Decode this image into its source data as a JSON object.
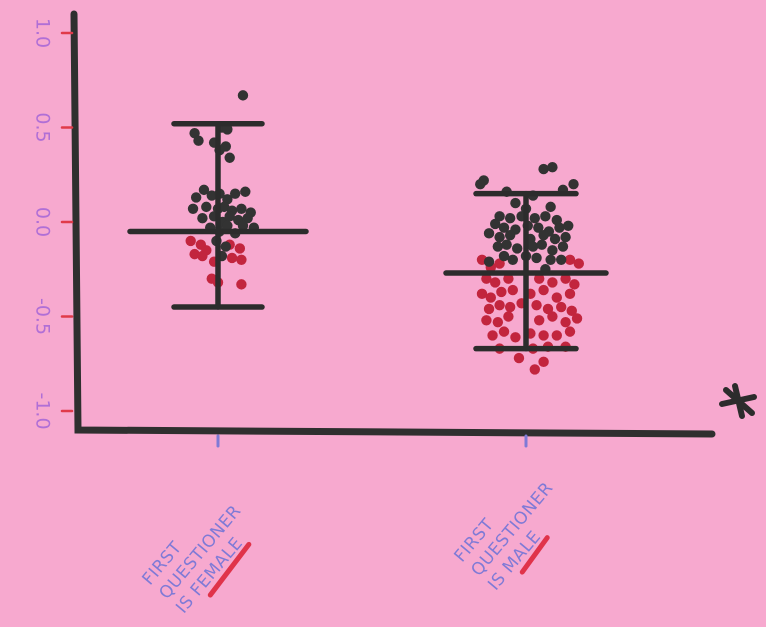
{
  "chart_data": {
    "type": "scatter",
    "ylim": [
      -1.0,
      1.0
    ],
    "yticks": [
      "1.0",
      "0.5",
      "0.0",
      "-0.5",
      "-1.0"
    ],
    "yticks_values": [
      1.0,
      0.5,
      0.0,
      -0.5,
      -1.0
    ],
    "categories": [
      {
        "lines": [
          "FIRST",
          "QUESTIONER",
          "IS FEMALE"
        ],
        "underlined_word": "FEMALE"
      },
      {
        "lines": [
          "FIRST",
          "QUESTIONER",
          "IS MALE"
        ],
        "underlined_word": "MALE"
      }
    ],
    "groups": [
      {
        "mean": -0.05,
        "upper": 0.52,
        "lower": -0.45,
        "points_black": [
          [
            0.32,
            0.67
          ],
          [
            -0.3,
            0.47
          ],
          [
            -0.25,
            0.43
          ],
          [
            0.05,
            0.5
          ],
          [
            0.12,
            0.49
          ],
          [
            -0.05,
            0.42
          ],
          [
            0.1,
            0.4
          ],
          [
            0.02,
            0.38
          ],
          [
            0.15,
            0.34
          ],
          [
            -0.28,
            0.13
          ],
          [
            -0.18,
            0.17
          ],
          [
            -0.08,
            0.14
          ],
          [
            0.02,
            0.15
          ],
          [
            0.12,
            0.12
          ],
          [
            0.22,
            0.15
          ],
          [
            0.35,
            0.16
          ],
          [
            -0.32,
            0.07
          ],
          [
            -0.15,
            0.08
          ],
          [
            0.0,
            0.07
          ],
          [
            0.08,
            0.08
          ],
          [
            0.18,
            0.06
          ],
          [
            0.3,
            0.07
          ],
          [
            0.42,
            0.05
          ],
          [
            -0.2,
            0.02
          ],
          [
            -0.05,
            0.03
          ],
          [
            0.06,
            0.0
          ],
          [
            0.15,
            0.03
          ],
          [
            0.26,
            0.01
          ],
          [
            0.38,
            0.02
          ],
          [
            -0.1,
            -0.03
          ],
          [
            0.02,
            -0.05
          ],
          [
            0.12,
            -0.02
          ],
          [
            0.22,
            -0.06
          ],
          [
            0.32,
            -0.02
          ],
          [
            0.46,
            -0.03
          ],
          [
            -0.02,
            -0.1
          ],
          [
            0.1,
            -0.13
          ],
          [
            0.05,
            -0.18
          ]
        ],
        "points_red": [
          [
            -0.35,
            -0.1
          ],
          [
            -0.22,
            -0.12
          ],
          [
            -0.15,
            -0.15
          ],
          [
            0.15,
            -0.12
          ],
          [
            0.28,
            -0.14
          ],
          [
            -0.3,
            -0.17
          ],
          [
            -0.2,
            -0.18
          ],
          [
            0.18,
            -0.19
          ],
          [
            0.3,
            -0.2
          ],
          [
            -0.05,
            -0.21
          ],
          [
            -0.08,
            -0.3
          ],
          [
            0.0,
            -0.32
          ],
          [
            0.3,
            -0.33
          ]
        ]
      },
      {
        "mean": -0.27,
        "upper": 0.15,
        "lower": -0.67,
        "points_black": [
          [
            -0.48,
            0.22
          ],
          [
            -0.52,
            0.2
          ],
          [
            0.2,
            0.28
          ],
          [
            0.3,
            0.29
          ],
          [
            0.54,
            0.2
          ],
          [
            0.42,
            0.17
          ],
          [
            -0.22,
            0.16
          ],
          [
            0.08,
            0.14
          ],
          [
            -0.12,
            0.1
          ],
          [
            0.0,
            0.07
          ],
          [
            0.28,
            0.08
          ],
          [
            -0.3,
            0.03
          ],
          [
            -0.18,
            0.02
          ],
          [
            -0.05,
            0.03
          ],
          [
            0.1,
            0.02
          ],
          [
            0.22,
            0.03
          ],
          [
            0.35,
            0.01
          ],
          [
            -0.35,
            -0.01
          ],
          [
            -0.25,
            -0.03
          ],
          [
            -0.12,
            -0.04
          ],
          [
            0.02,
            -0.02
          ],
          [
            0.14,
            -0.03
          ],
          [
            0.26,
            -0.05
          ],
          [
            0.38,
            -0.03
          ],
          [
            0.48,
            -0.02
          ],
          [
            -0.42,
            -0.06
          ],
          [
            -0.3,
            -0.08
          ],
          [
            -0.18,
            -0.07
          ],
          [
            0.05,
            -0.09
          ],
          [
            0.2,
            -0.07
          ],
          [
            0.33,
            -0.09
          ],
          [
            0.45,
            -0.08
          ],
          [
            -0.32,
            -0.13
          ],
          [
            -0.22,
            -0.12
          ],
          [
            -0.1,
            -0.14
          ],
          [
            0.08,
            -0.13
          ],
          [
            0.18,
            -0.12
          ],
          [
            0.3,
            -0.15
          ],
          [
            0.42,
            -0.13
          ],
          [
            -0.25,
            -0.18
          ],
          [
            -0.15,
            -0.2
          ],
          [
            0.0,
            -0.18
          ],
          [
            0.12,
            -0.19
          ],
          [
            0.28,
            -0.2
          ],
          [
            0.4,
            -0.2
          ],
          [
            0.22,
            -0.25
          ],
          [
            -0.42,
            -0.21
          ]
        ],
        "points_red": [
          [
            -0.5,
            -0.2
          ],
          [
            -0.4,
            -0.24
          ],
          [
            -0.3,
            -0.22
          ],
          [
            0.5,
            -0.2
          ],
          [
            0.6,
            -0.22
          ],
          [
            -0.45,
            -0.3
          ],
          [
            -0.35,
            -0.32
          ],
          [
            -0.2,
            -0.3
          ],
          [
            0.15,
            -0.3
          ],
          [
            0.3,
            -0.32
          ],
          [
            0.45,
            -0.3
          ],
          [
            0.55,
            -0.33
          ],
          [
            -0.5,
            -0.38
          ],
          [
            -0.4,
            -0.4
          ],
          [
            -0.28,
            -0.37
          ],
          [
            -0.15,
            -0.36
          ],
          [
            0.05,
            -0.38
          ],
          [
            0.2,
            -0.36
          ],
          [
            0.35,
            -0.4
          ],
          [
            0.5,
            -0.38
          ],
          [
            -0.42,
            -0.46
          ],
          [
            -0.3,
            -0.44
          ],
          [
            -0.18,
            -0.45
          ],
          [
            -0.05,
            -0.43
          ],
          [
            0.12,
            -0.44
          ],
          [
            0.25,
            -0.46
          ],
          [
            0.4,
            -0.45
          ],
          [
            0.52,
            -0.47
          ],
          [
            -0.45,
            -0.52
          ],
          [
            -0.32,
            -0.53
          ],
          [
            -0.2,
            -0.5
          ],
          [
            0.15,
            -0.52
          ],
          [
            0.3,
            -0.5
          ],
          [
            0.45,
            -0.53
          ],
          [
            0.58,
            -0.51
          ],
          [
            -0.38,
            -0.6
          ],
          [
            -0.25,
            -0.58
          ],
          [
            -0.12,
            -0.61
          ],
          [
            0.05,
            -0.59
          ],
          [
            0.2,
            -0.6
          ],
          [
            0.35,
            -0.6
          ],
          [
            0.5,
            -0.58
          ],
          [
            -0.3,
            -0.67
          ],
          [
            0.08,
            -0.67
          ],
          [
            0.25,
            -0.66
          ],
          [
            0.45,
            -0.66
          ],
          [
            -0.08,
            -0.72
          ],
          [
            0.2,
            -0.74
          ],
          [
            0.1,
            -0.78
          ]
        ]
      }
    ]
  },
  "colors": {
    "background": "#f7a9cf",
    "axis": "#2f2f2f",
    "black_dots": "#333333",
    "red_dots": "#c2253e",
    "tick_labels": "#b06fd6",
    "category_labels": "#7f7ad6",
    "underline": "#e0334a"
  },
  "decoration": {
    "asterisk_icon": "hand-drawn-asterisk"
  }
}
